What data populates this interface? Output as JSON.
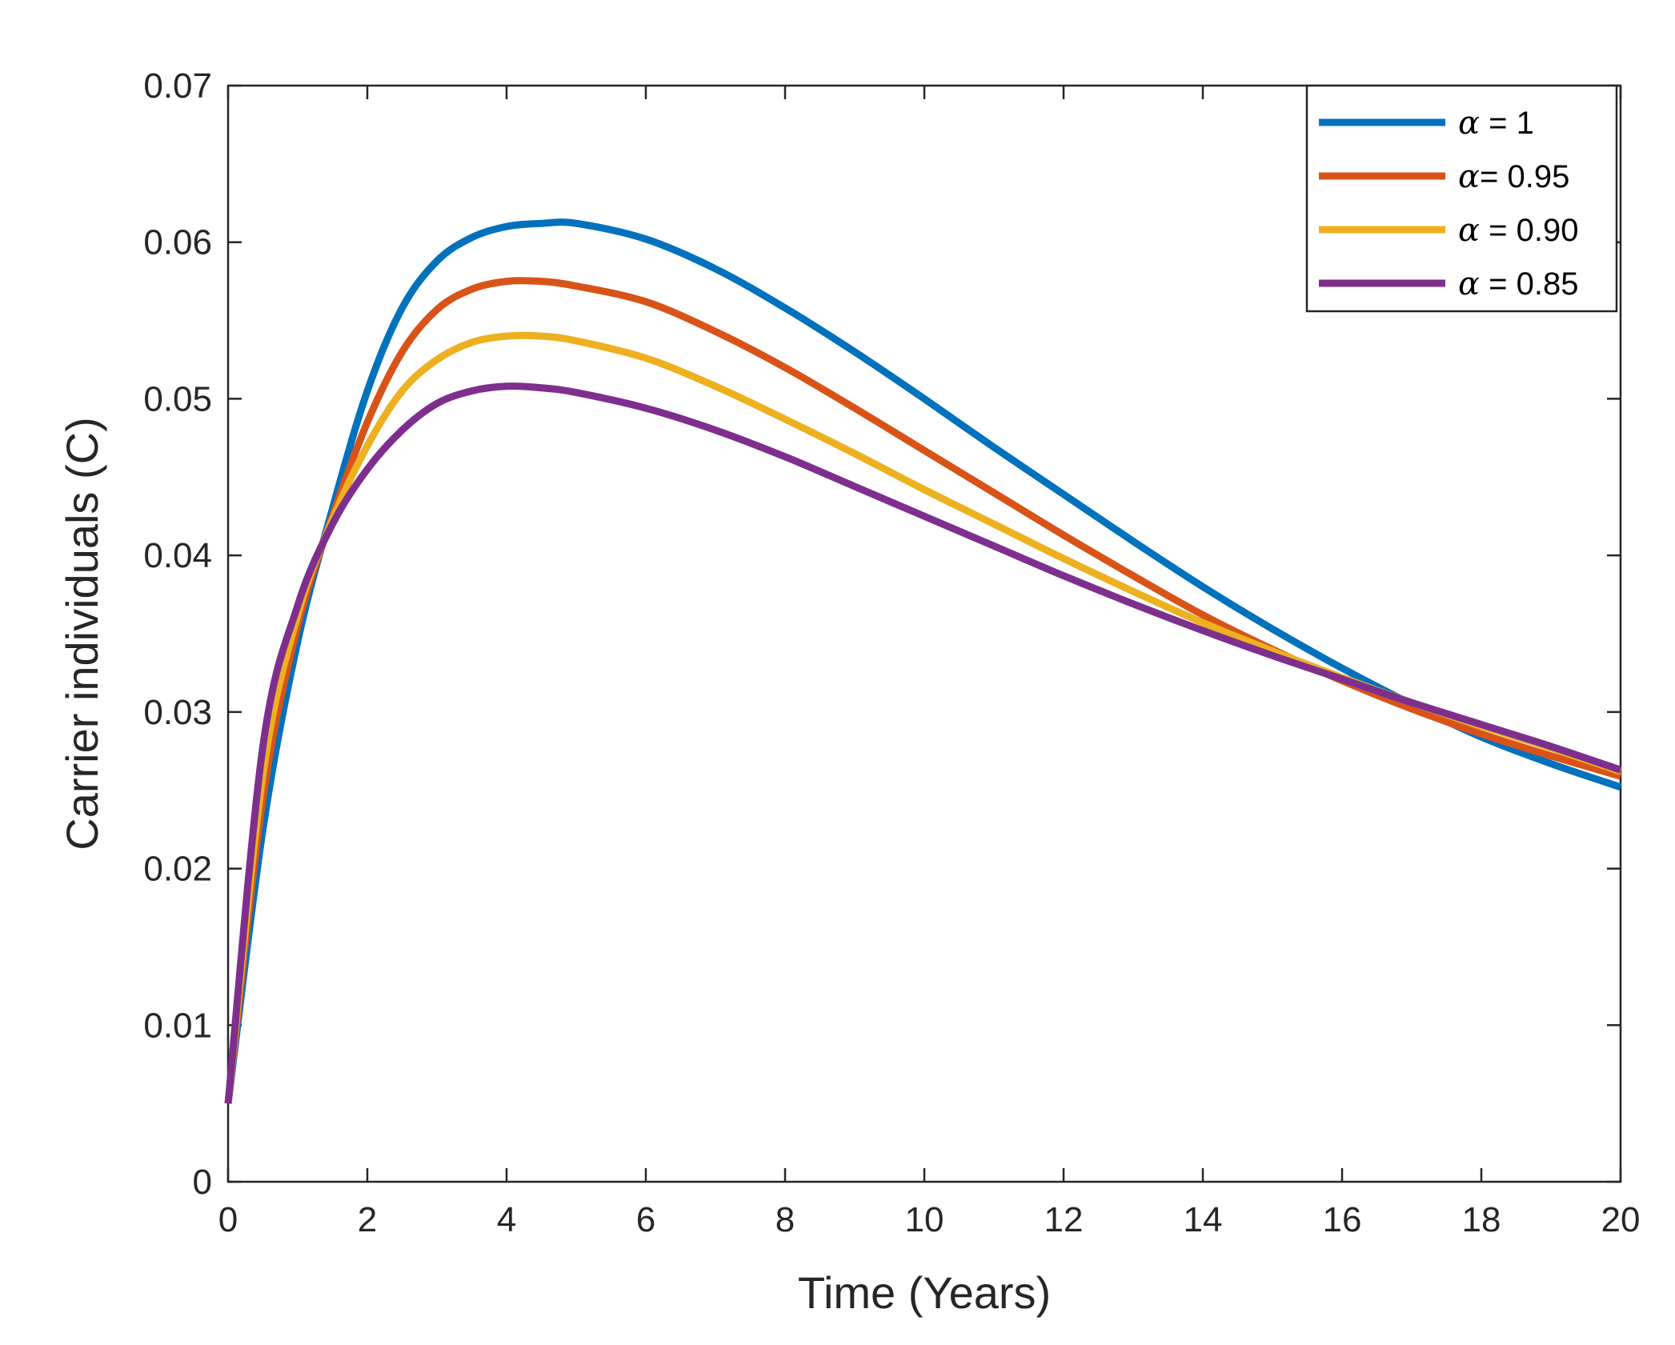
{
  "chart_data": {
    "type": "line",
    "title": "",
    "xlabel": "Time (Years)",
    "ylabel": "Carrier individuals (C)",
    "xlim": [
      0,
      20
    ],
    "ylim": [
      0,
      0.07
    ],
    "xticks": [
      0,
      2,
      4,
      6,
      8,
      10,
      12,
      14,
      16,
      18,
      20
    ],
    "xtick_labels": [
      "0",
      "2",
      "4",
      "6",
      "8",
      "10",
      "12",
      "14",
      "16",
      "18",
      "20"
    ],
    "yticks": [
      0,
      0.01,
      0.02,
      0.03,
      0.04,
      0.05,
      0.06,
      0.07
    ],
    "ytick_labels": [
      "0",
      "0.01",
      "0.02",
      "0.03",
      "0.04",
      "0.05",
      "0.06",
      "0.07"
    ],
    "grid": false,
    "legend_position": "top-right",
    "x": [
      0,
      0.5,
      1,
      1.5,
      2,
      2.5,
      3,
      3.5,
      4,
      4.5,
      5,
      6,
      7,
      8,
      9,
      10,
      11,
      12,
      13,
      14,
      15,
      16,
      17,
      18,
      19,
      20
    ],
    "series": [
      {
        "name": "α = 1",
        "legend_symbol": "α",
        "legend_suffix": " = 1",
        "color": "#0072BD",
        "values": [
          0.005,
          0.0225,
          0.0345,
          0.043,
          0.0505,
          0.0558,
          0.0588,
          0.0603,
          0.061,
          0.0612,
          0.0612,
          0.0602,
          0.0583,
          0.0558,
          0.053,
          0.05,
          0.0469,
          0.0439,
          0.0409,
          0.038,
          0.0353,
          0.0328,
          0.0305,
          0.0284,
          0.0267,
          0.0252
        ]
      },
      {
        "name": "α= 0.95",
        "legend_symbol": "α",
        "legend_suffix": "= 0.95",
        "color": "#D95319",
        "values": [
          0.005,
          0.0245,
          0.0355,
          0.0425,
          0.0485,
          0.053,
          0.0557,
          0.057,
          0.0575,
          0.0575,
          0.0572,
          0.0562,
          0.0543,
          0.052,
          0.0494,
          0.0467,
          0.044,
          0.0413,
          0.0387,
          0.0362,
          0.034,
          0.032,
          0.0302,
          0.0286,
          0.0272,
          0.0259
        ]
      },
      {
        "name": "α = 0.90",
        "legend_symbol": "α",
        "legend_suffix": " = 0.90",
        "color": "#EDB120",
        "values": [
          0.005,
          0.026,
          0.0362,
          0.0423,
          0.047,
          0.0505,
          0.0525,
          0.0536,
          0.054,
          0.054,
          0.0537,
          0.0526,
          0.0508,
          0.0487,
          0.0465,
          0.0442,
          0.042,
          0.0398,
          0.0377,
          0.0357,
          0.0339,
          0.0322,
          0.0306,
          0.0291,
          0.0277,
          0.0262
        ]
      },
      {
        "name": "α = 0.85",
        "legend_symbol": "α",
        "legend_suffix": " = 0.85",
        "color": "#7E2F8E",
        "values": [
          0.005,
          0.0278,
          0.0368,
          0.042,
          0.0455,
          0.048,
          0.0497,
          0.0505,
          0.0508,
          0.0507,
          0.0504,
          0.0494,
          0.048,
          0.0463,
          0.0444,
          0.0425,
          0.0406,
          0.0387,
          0.0369,
          0.0352,
          0.0336,
          0.0321,
          0.0306,
          0.0292,
          0.0278,
          0.0263
        ]
      }
    ]
  }
}
